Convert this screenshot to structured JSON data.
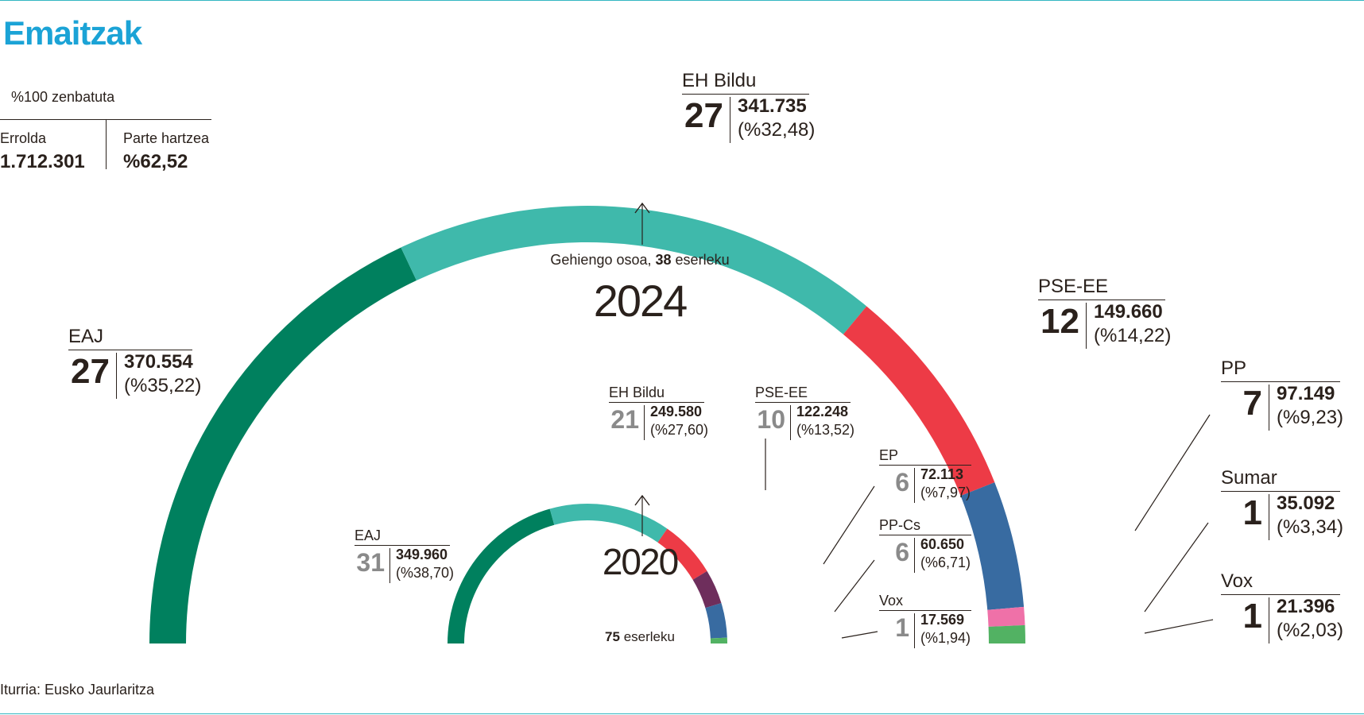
{
  "header": {
    "title": "Emaitzak",
    "percent_note": "%100 zenbatuta"
  },
  "summary": {
    "census_label": "Errolda",
    "census_value": "1.712.301",
    "turnout_label": "Parte hartzea",
    "turnout_value": "%62,52"
  },
  "source": "Iturria: Eusko Jaurlaritza",
  "labels": {
    "majority_prefix": "Gehiengo osoa, ",
    "majority_seats": "38",
    "majority_suffix": " eserleku",
    "year_2024": "2024",
    "year_2020": "2020",
    "seats_total_num": "75",
    "seats_total_suffix": " eserleku"
  },
  "colors": {
    "EAJ": "#00805e",
    "EH Bildu": "#3fb9ab",
    "PSE-EE": "#ed3b46",
    "PP": "#386ba1",
    "EP": "#6e2e5c",
    "Sumar": "#ef71a8",
    "Vox": "#52b263",
    "accent": "#1ba3d6",
    "rule": "#33b7c2"
  },
  "chart_data": [
    {
      "type": "pie",
      "variant": "half-donut (parliament)",
      "year": "2024",
      "total_seats": 75,
      "parties": [
        {
          "name": "EAJ",
          "seats": 27,
          "votes": "370.554",
          "pct": "(%35,22)"
        },
        {
          "name": "EH Bildu",
          "seats": 27,
          "votes": "341.735",
          "pct": "(%32,48)"
        },
        {
          "name": "PSE-EE",
          "seats": 12,
          "votes": "149.660",
          "pct": "(%14,22)"
        },
        {
          "name": "PP",
          "seats": 7,
          "votes": "97.149",
          "pct": "(%9,23)"
        },
        {
          "name": "Sumar",
          "seats": 1,
          "votes": "35.092",
          "pct": "(%3,34)"
        },
        {
          "name": "Vox",
          "seats": 1,
          "votes": "21.396",
          "pct": "(%2,03)"
        }
      ]
    },
    {
      "type": "pie",
      "variant": "half-donut (parliament)",
      "year": "2020",
      "total_seats": 75,
      "parties": [
        {
          "name": "EAJ",
          "seats": 31,
          "votes": "349.960",
          "pct": "(%38,70)"
        },
        {
          "name": "EH Bildu",
          "seats": 21,
          "votes": "249.580",
          "pct": "(%27,60)"
        },
        {
          "name": "PSE-EE",
          "seats": 10,
          "votes": "122.248",
          "pct": "(%13,52)"
        },
        {
          "name": "EP",
          "seats": 6,
          "votes": "72.113",
          "pct": "(%7,97)"
        },
        {
          "name": "PP-Cs",
          "seats": 6,
          "votes": "60.650",
          "pct": "(%6,71)"
        },
        {
          "name": "Vox",
          "seats": 1,
          "votes": "17.569",
          "pct": "(%1,94)"
        }
      ]
    }
  ]
}
